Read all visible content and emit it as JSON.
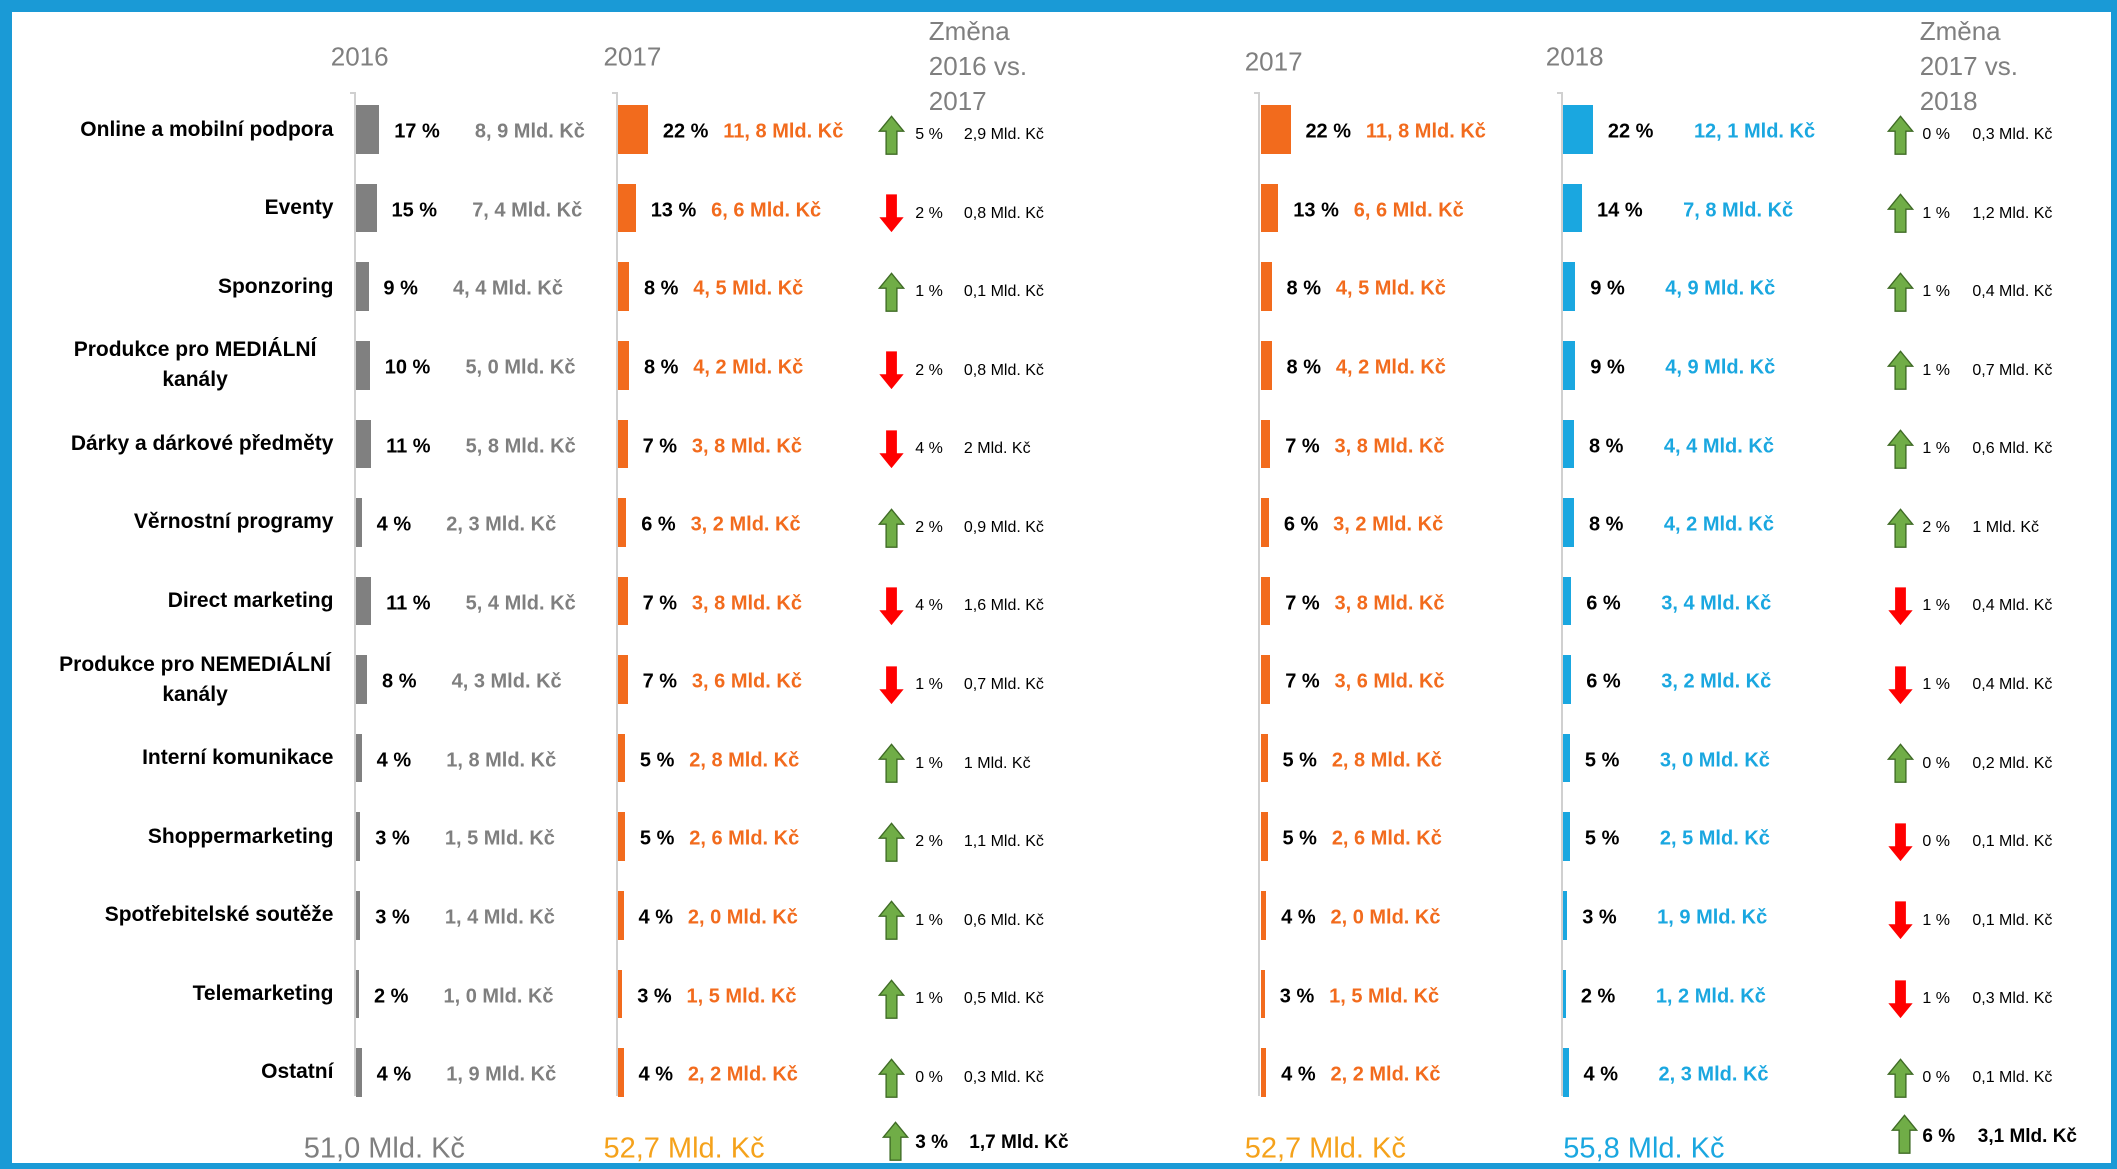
{
  "chart_data": {
    "type": "bar",
    "categories": [
      "Online a mobilní podpora",
      "Eventy",
      "Sponzoring",
      "Produkce pro MEDIÁLNÍ kanály",
      "Dárky a dárkové předměty",
      "Věrnostní programy",
      "Direct marketing",
      "Produkce pro NEMEDIÁLNÍ kanály",
      "Interní komunikace",
      "Shoppermarketing",
      "Spotřebitelské soutěže",
      "Telemarketing",
      "Ostatní"
    ],
    "panels": [
      {
        "title": "2016",
        "color": "#808080",
        "label_color": "#7f7f7f",
        "total_color": "#7f7f7f",
        "values": [
          17,
          15,
          9,
          10,
          11,
          4,
          11,
          8,
          4,
          3,
          3,
          2,
          4
        ],
        "value_labels": [
          "17 %",
          "15 %",
          "9 %",
          "10 %",
          "11 %",
          "4 %",
          "11 %",
          "8 %",
          "4 %",
          "3 %",
          "3 %",
          "2 %",
          "4 %"
        ],
        "amounts": [
          "8, 9 Mld. Kč",
          "7, 4 Mld. Kč",
          "4, 4 Mld. Kč",
          "5, 0 Mld. Kč",
          "5, 8 Mld. Kč",
          "2, 3 Mld. Kč",
          "5, 4 Mld. Kč",
          "4, 3 Mld. Kč",
          "1, 8 Mld. Kč",
          "1, 5 Mld. Kč",
          "1, 4 Mld. Kč",
          "1, 0 Mld. Kč",
          "1, 9 Mld. Kč"
        ],
        "total": "51,0 Mld. Kč"
      },
      {
        "title": "2017",
        "color": "#f26b1d",
        "label_color": "#f26b1d",
        "total_color": "#f5a21b",
        "values": [
          22,
          13,
          8,
          8,
          7,
          6,
          7,
          7,
          5,
          5,
          4,
          3,
          4
        ],
        "value_labels": [
          "22 %",
          "13 %",
          "8 %",
          "8 %",
          "7 %",
          "6 %",
          "7 %",
          "7 %",
          "5 %",
          "5 %",
          "4 %",
          "3 %",
          "4 %"
        ],
        "amounts": [
          "11, 8 Mld. Kč",
          "6, 6 Mld. Kč",
          "4, 5 Mld. Kč",
          "4, 2 Mld. Kč",
          "3, 8 Mld. Kč",
          "3, 2 Mld. Kč",
          "3, 8 Mld. Kč",
          "3, 6 Mld. Kč",
          "2, 8 Mld. Kč",
          "2, 6 Mld. Kč",
          "2, 0 Mld. Kč",
          "1, 5 Mld. Kč",
          "2, 2 Mld. Kč"
        ],
        "total": "52,7 Mld. Kč"
      },
      {
        "title": "2017",
        "color": "#f26b1d",
        "label_color": "#f26b1d",
        "total_color": "#f5a21b",
        "values": [
          22,
          13,
          8,
          8,
          7,
          6,
          7,
          7,
          5,
          5,
          4,
          3,
          4
        ],
        "value_labels": [
          "22 %",
          "13 %",
          "8 %",
          "8 %",
          "7 %",
          "6 %",
          "7 %",
          "7 %",
          "5 %",
          "5 %",
          "4 %",
          "3 %",
          "4 %"
        ],
        "amounts": [
          "11, 8 Mld. Kč",
          "6, 6 Mld. Kč",
          "4, 5 Mld. Kč",
          "4, 2 Mld. Kč",
          "3, 8 Mld. Kč",
          "3, 2 Mld. Kč",
          "3, 8 Mld. Kč",
          "3, 6 Mld. Kč",
          "2, 8 Mld. Kč",
          "2, 6 Mld. Kč",
          "2, 0 Mld. Kč",
          "1, 5 Mld. Kč",
          "2, 2 Mld. Kč"
        ],
        "total": "52,7 Mld. Kč"
      },
      {
        "title": "2018",
        "color": "#1aa7e0",
        "label_color": "#1aa7e0",
        "total_color": "#1aa7e0",
        "values": [
          22,
          14,
          9,
          9,
          8,
          8,
          6,
          6,
          5,
          5,
          3,
          2,
          4
        ],
        "value_labels": [
          "22 %",
          "14 %",
          "9 %",
          "9 %",
          "8 %",
          "8 %",
          "6 %",
          "6 %",
          "5 %",
          "5 %",
          "3 %",
          "2 %",
          "4 %"
        ],
        "amounts": [
          "12, 1 Mld. Kč",
          "7, 8 Mld. Kč",
          "4, 9 Mld. Kč",
          "4, 9 Mld. Kč",
          "4, 4 Mld. Kč",
          "4, 2 Mld. Kč",
          "3, 4 Mld. Kč",
          "3, 2 Mld. Kč",
          "3, 0 Mld. Kč",
          "2, 5 Mld. Kč",
          "1, 9 Mld. Kč",
          "1, 2 Mld. Kč",
          "2, 3 Mld. Kč"
        ],
        "total": "55,8 Mld. Kč"
      }
    ],
    "changes": [
      {
        "title": "Změna 2016 vs. 2017",
        "arrows": [
          "up",
          "down",
          "up",
          "down",
          "down",
          "up",
          "down",
          "down",
          "up",
          "up",
          "up",
          "up",
          "up"
        ],
        "percents": [
          "5 %",
          "2 %",
          "1 %",
          "2 %",
          "4 %",
          "2 %",
          "4 %",
          "1 %",
          "1 %",
          "2 %",
          "1 %",
          "1 %",
          "0 %"
        ],
        "amounts": [
          "2,9 Mld. Kč",
          "0,8 Mld. Kč",
          "0,1 Mld. Kč",
          "0,8 Mld. Kč",
          "2 Mld. Kč",
          "0,9 Mld. Kč",
          "1,6 Mld. Kč",
          "0,7 Mld. Kč",
          "1 Mld. Kč",
          "1,1 Mld. Kč",
          "0,6 Mld. Kč",
          "0,5 Mld. Kč",
          "0,3 Mld. Kč"
        ],
        "total_arrow": "up",
        "total_percent": "3 %",
        "total_amount": "1,7 Mld. Kč"
      },
      {
        "title": "Změna 2017 vs. 2018",
        "arrows": [
          "up",
          "up",
          "up",
          "up",
          "up",
          "up",
          "down",
          "down",
          "up",
          "down",
          "down",
          "down",
          "up"
        ],
        "percents": [
          "0 %",
          "1 %",
          "1 %",
          "1 %",
          "1 %",
          "2 %",
          "1 %",
          "1 %",
          "0 %",
          "0 %",
          "1 %",
          "1 %",
          "0 %"
        ],
        "amounts": [
          "0,3 Mld. Kč",
          "1,2 Mld. Kč",
          "0,4 Mld. Kč",
          "0,7 Mld. Kč",
          "0,6 Mld. Kč",
          "1 Mld. Kč",
          "0,4 Mld. Kč",
          "0,4 Mld. Kč",
          "0,2 Mld. Kč",
          "0,1 Mld. Kč",
          "0,1 Mld. Kč",
          "0,3 Mld. Kč",
          "0,1 Mld. Kč"
        ],
        "total_arrow": "up",
        "total_percent": "6 %",
        "total_amount": "3,1 Mld. Kč"
      }
    ]
  }
}
